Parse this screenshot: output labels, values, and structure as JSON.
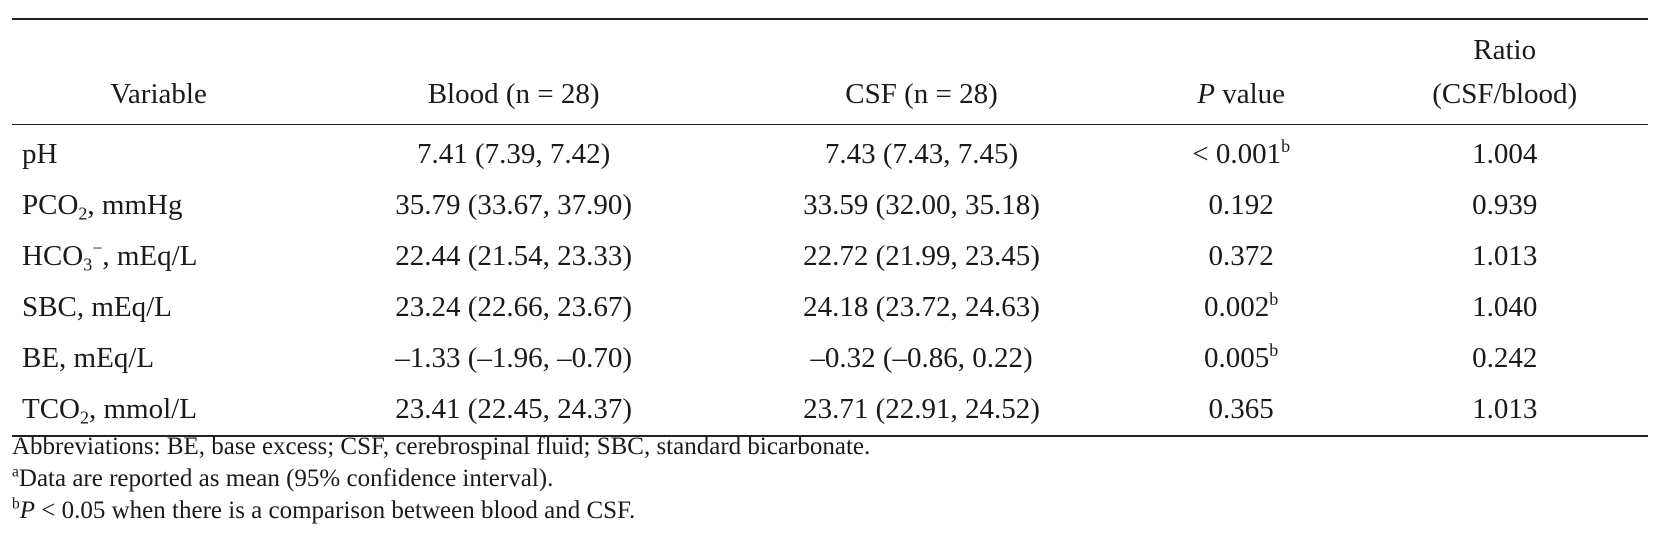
{
  "table": {
    "headers": {
      "variable": "Variable",
      "blood": "Blood (n = 28)",
      "csf": "CSF (n = 28)",
      "p_italic": "P",
      "p_rest": " value",
      "ratio_line1": "Ratio",
      "ratio_line2": "(CSF/blood)"
    },
    "rows": [
      {
        "var_main": "pH",
        "var_sub": "",
        "var_sup": "",
        "var_tail": "",
        "blood": "7.41 (7.39, 7.42)",
        "csf": "7.43 (7.43, 7.45)",
        "p": "< 0.001",
        "p_sup": "b",
        "ratio": "1.004"
      },
      {
        "var_main": "PCO",
        "var_sub": "2",
        "var_sup": "",
        "var_tail": ", mmHg",
        "blood": "35.79 (33.67, 37.90)",
        "csf": "33.59 (32.00, 35.18)",
        "p": "0.192",
        "p_sup": "",
        "ratio": "0.939"
      },
      {
        "var_main": "HCO",
        "var_sub": "3",
        "var_sup": "−",
        "var_tail": ", mEq/L",
        "blood": "22.44 (21.54, 23.33)",
        "csf": "22.72 (21.99, 23.45)",
        "p": "0.372",
        "p_sup": "",
        "ratio": "1.013"
      },
      {
        "var_main": "SBC, mEq/L",
        "var_sub": "",
        "var_sup": "",
        "var_tail": "",
        "blood": "23.24 (22.66, 23.67)",
        "csf": "24.18 (23.72, 24.63)",
        "p": "0.002",
        "p_sup": "b",
        "ratio": "1.040"
      },
      {
        "var_main": "BE, mEq/L",
        "var_sub": "",
        "var_sup": "",
        "var_tail": "",
        "blood": "–1.33 (–1.96, –0.70)",
        "csf": "–0.32 (–0.86, 0.22)",
        "p": "0.005",
        "p_sup": "b",
        "ratio": "0.242"
      },
      {
        "var_main": "TCO",
        "var_sub": "2",
        "var_sup": "",
        "var_tail": ", mmol/L",
        "blood": "23.41 (22.45, 24.37)",
        "csf": "23.71 (22.91, 24.52)",
        "p": "0.365",
        "p_sup": "",
        "ratio": "1.013"
      }
    ]
  },
  "footnotes": {
    "abbreviations": "Abbreviations: BE, base excess; CSF, cerebrospinal fluid; SBC, standard bicarbonate.",
    "note_a_mark": "a",
    "note_a_text": "Data are reported as mean (95% confidence interval).",
    "note_b_mark": "b",
    "note_b_italic": "P",
    "note_b_text": " < 0.05 when there is a comparison between blood and CSF."
  }
}
